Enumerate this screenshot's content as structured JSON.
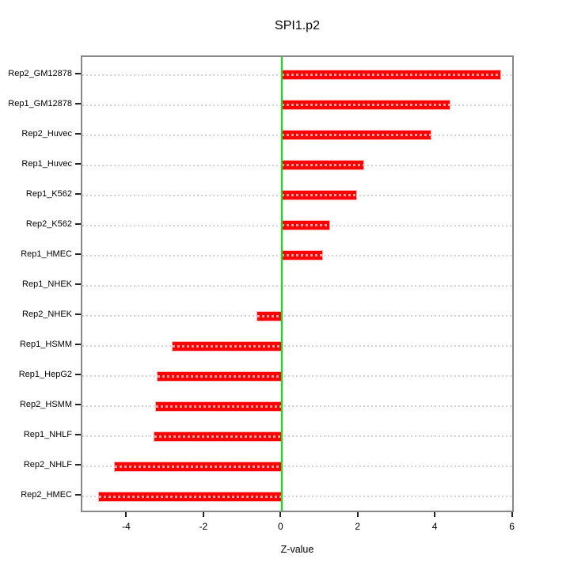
{
  "chart_data": {
    "type": "bar",
    "orientation": "horizontal",
    "title": "SPI1.p2",
    "xlabel": "Z-value",
    "ylabel": "",
    "categories": [
      "Rep2_GM12878",
      "Rep1_GM12878",
      "Rep2_Huvec",
      "Rep1_Huvec",
      "Rep1_K562",
      "Rep2_K562",
      "Rep1_HMEC",
      "Rep1_NHEK",
      "Rep2_NHEK",
      "Rep1_HSMM",
      "Rep1_HepG2",
      "Rep2_HSMM",
      "Rep1_NHLF",
      "Rep2_NHLF",
      "Rep2_HMEC"
    ],
    "values": [
      5.65,
      4.35,
      3.86,
      2.11,
      1.93,
      1.22,
      1.05,
      0.0,
      -0.65,
      -2.84,
      -3.23,
      -3.27,
      -3.32,
      -4.34,
      -4.75
    ],
    "x_ticks": [
      -4,
      -2,
      0,
      2,
      4,
      6
    ],
    "xlim": [
      -5.18,
      6.05
    ],
    "zero_line_x": 0,
    "grid": "dotted horizontal line per category",
    "legend": "none",
    "colors": {
      "bar": "#fe0000",
      "bar_overlay_dash": "#ff9d9d",
      "zero_line": "#00ee00",
      "grid_line": "#d4d4d4",
      "box_border": "#888888",
      "tick": "#222222",
      "text": "#000000",
      "background": "#ffffff"
    }
  }
}
